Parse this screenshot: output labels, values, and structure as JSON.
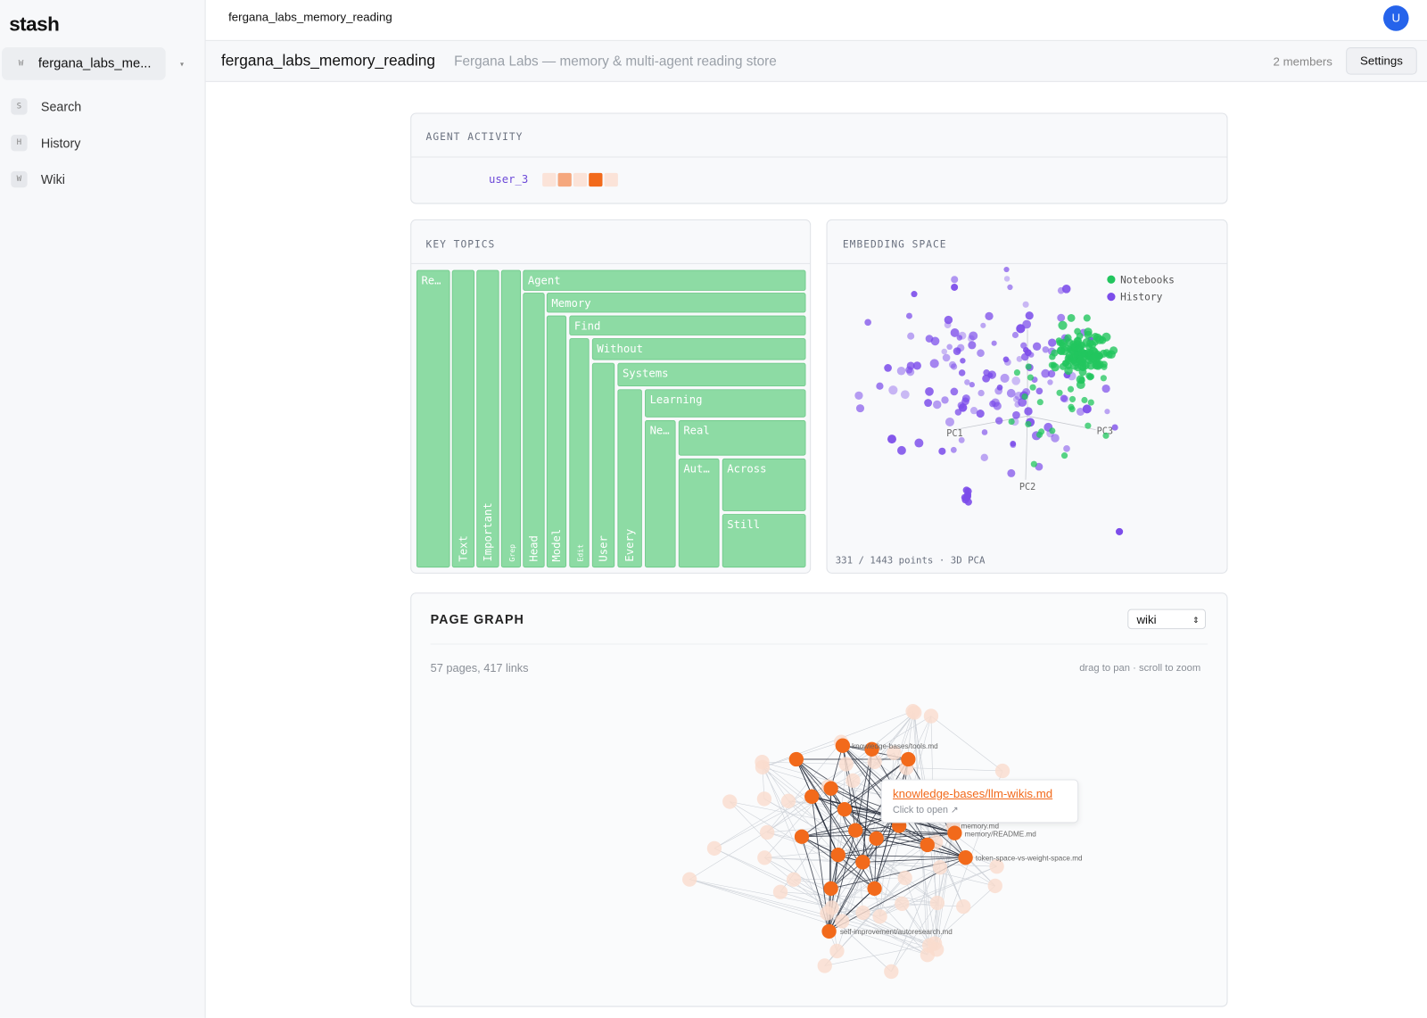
{
  "sidebar": {
    "logo": "stash",
    "workspace": {
      "icon": "W",
      "name": "fergana_labs_me..."
    },
    "nav": [
      {
        "icon": "S",
        "label": "Search"
      },
      {
        "icon": "H",
        "label": "History"
      },
      {
        "icon": "W",
        "label": "Wiki"
      }
    ]
  },
  "topbar": {
    "breadcrumb": "fergana_labs_memory_reading",
    "avatar": "U"
  },
  "header": {
    "title": "fergana_labs_memory_reading",
    "subtitle": "Fergana Labs — memory & multi-agent reading store",
    "members": "2 members",
    "settings": "Settings"
  },
  "agent_activity": {
    "title": "AGENT ACTIVITY",
    "user": "user_3"
  },
  "key_topics": {
    "title": "KEY TOPICS",
    "topics": [
      "Re…",
      "Text",
      "Important",
      "Grep",
      "Agent",
      "Head",
      "Memory",
      "Model",
      "Find",
      "Edit",
      "Without",
      "User",
      "Systems",
      "Every",
      "Learning",
      "Ne…",
      "Real",
      "Aut…",
      "Across",
      "Still"
    ]
  },
  "embedding": {
    "title": "EMBEDDING SPACE",
    "legend": [
      {
        "name": "Notebooks",
        "color": "#22c55e"
      },
      {
        "name": "History",
        "color": "#7c4dea"
      }
    ],
    "axes": [
      "PC1",
      "PC2",
      "PC3"
    ],
    "footer": "331 / 1443 points · 3D PCA"
  },
  "page_graph": {
    "title": "PAGE GRAPH",
    "select": "wiki",
    "stats": "57 pages, 417 links",
    "hint": "drag to pan · scroll to zoom",
    "labels": [
      "knowledge-bases/tools.md",
      "memory.md",
      "memory/README.md",
      "token-space-vs-weight-space.md",
      "self-improvement/autoresearch.md"
    ],
    "tooltip": {
      "link": "knowledge-bases/llm-wikis.md",
      "action": "Click to open ↗"
    }
  }
}
